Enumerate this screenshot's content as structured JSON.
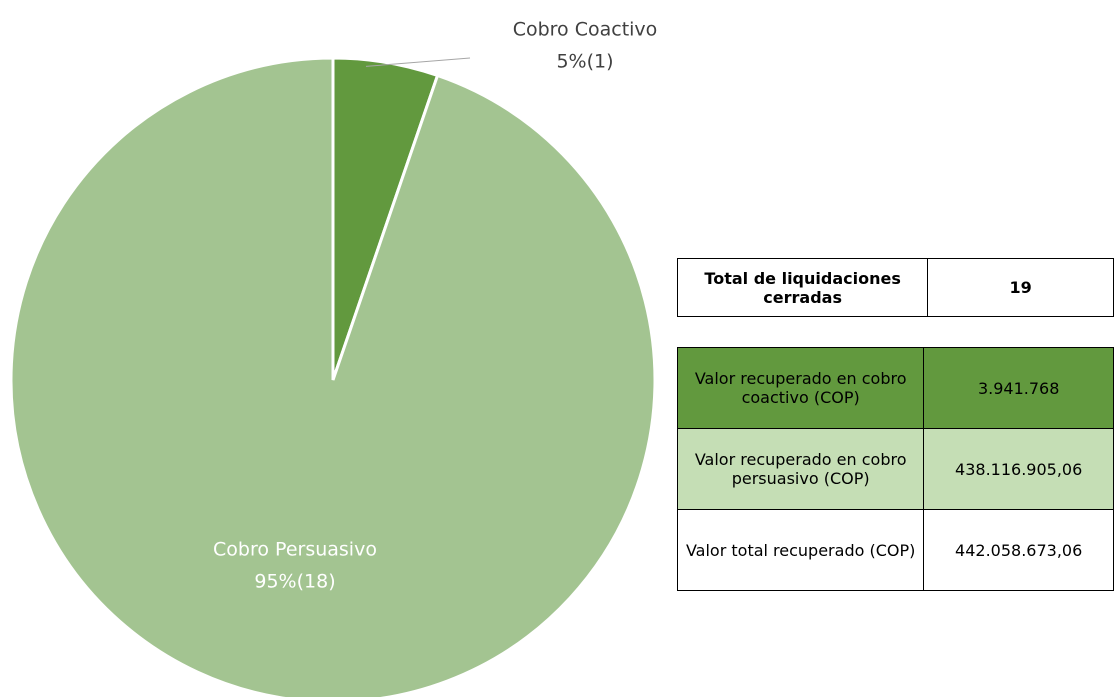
{
  "chart_data": {
    "type": "pie",
    "categories": [
      "Cobro Coactivo",
      "Cobro Persuasivo"
    ],
    "values": [
      1,
      18
    ],
    "value_labels": [
      "5%(1)",
      "95%(18)"
    ],
    "colors": [
      "#62993e",
      "#a3c491"
    ]
  },
  "tables": [
    {
      "rows": [
        [
          "Total de liquidaciones cerradas",
          "19"
        ]
      ]
    },
    {
      "rows": [
        [
          "Valor recuperado en cobro coactivo (COP)",
          "3.941.768"
        ],
        [
          "Valor recuperado en cobro persuasivo (COP)",
          "438.116.905,06"
        ],
        [
          "Valor total recuperado (COP)",
          "442.058.673,06"
        ]
      ]
    }
  ]
}
